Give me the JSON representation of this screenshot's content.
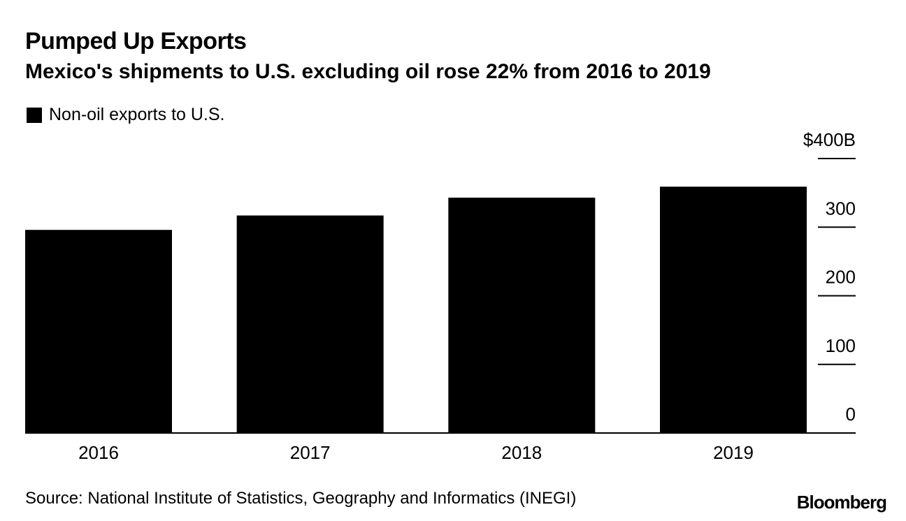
{
  "chart_data": {
    "type": "bar",
    "title": "Pumped Up Exports",
    "subtitle": "Mexico's shipments to U.S. excluding oil rose 22% from 2016 to 2019",
    "legend": {
      "label": "Non-oil exports to U.S.",
      "placement": "top-left"
    },
    "categories": [
      "2016",
      "2017",
      "2018",
      "2019"
    ],
    "series": [
      {
        "name": "Non-oil exports to U.S.",
        "values": [
          296,
          317,
          343,
          359
        ],
        "color": "#000000"
      }
    ],
    "ylim": [
      0,
      400
    ],
    "yticks": [
      {
        "value": 0,
        "label": "0"
      },
      {
        "value": 100,
        "label": "100"
      },
      {
        "value": 200,
        "label": "200"
      },
      {
        "value": 300,
        "label": "300"
      },
      {
        "value": 400,
        "label": "$400B"
      }
    ],
    "xlabel": "",
    "ylabel": "",
    "y_axis_side": "right",
    "grid": false,
    "source": "Source: National Institute of Statistics, Geography and Informatics (INEGI)",
    "brand": "Bloomberg"
  }
}
